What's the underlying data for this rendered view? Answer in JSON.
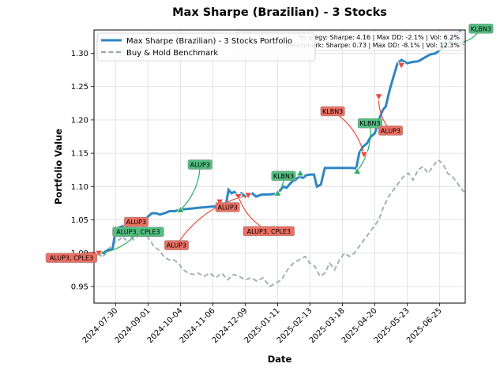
{
  "chart_data": {
    "type": "line",
    "title": "Max Sharpe (Brazilian) - 3 Stocks",
    "xlabel": "Date",
    "ylabel": "Portfolio Value",
    "x_ticks": [
      "2024-07-30",
      "2024-09-01",
      "2024-10-04",
      "2024-11-06",
      "2024-12-09",
      "2025-01-11",
      "2025-02-13",
      "2025-03-18",
      "2025-04-20",
      "2025-05-23",
      "2025-06-25"
    ],
    "y_ticks": [
      "0.95",
      "1.00",
      "1.05",
      "1.10",
      "1.15",
      "1.20",
      "1.25",
      "1.30"
    ],
    "xlim": [
      "2024-07-08",
      "2025-07-21"
    ],
    "ylim": [
      0.925,
      1.335
    ],
    "grid": true,
    "legend_position": "top-left",
    "stats_box": {
      "line1": "Strategy: Sharpe: 4.16 | Max DD: -2.1% | Vol: 6.2%",
      "line2": "Benchmark: Sharpe: 0.73 | Max DD: -8.1% | Vol: 12.3%"
    },
    "colors": {
      "strategy": "#2e86c1",
      "benchmark": "#95a5a6",
      "buy": "#27ae60",
      "sell": "#e74c3c",
      "buy_box": "#52be80",
      "sell_box": "#ec7063"
    },
    "series": [
      {
        "name": "Max Sharpe (Brazilian) - 3 Stocks Portfolio",
        "style": "solid",
        "points": [
          [
            "2024-07-13",
            1.0
          ],
          [
            "2024-07-16",
            1.001
          ],
          [
            "2024-07-18",
            1.0
          ],
          [
            "2024-07-20",
            1.003
          ],
          [
            "2024-07-23",
            1.005
          ],
          [
            "2024-07-25",
            1.005
          ],
          [
            "2024-07-27",
            1.007
          ],
          [
            "2024-07-30",
            1.035
          ],
          [
            "2024-08-02",
            1.038
          ],
          [
            "2024-08-05",
            1.04
          ],
          [
            "2024-08-08",
            1.041
          ],
          [
            "2024-08-11",
            1.043
          ],
          [
            "2024-08-14",
            1.043
          ],
          [
            "2024-08-17",
            1.045
          ],
          [
            "2024-08-20",
            1.045
          ],
          [
            "2024-08-24",
            1.046
          ],
          [
            "2024-08-28",
            1.047
          ],
          [
            "2024-09-01",
            1.055
          ],
          [
            "2024-09-05",
            1.06
          ],
          [
            "2024-09-09",
            1.06
          ],
          [
            "2024-09-13",
            1.058
          ],
          [
            "2024-09-18",
            1.06
          ],
          [
            "2024-09-23",
            1.063
          ],
          [
            "2024-09-28",
            1.063
          ],
          [
            "2024-10-04",
            1.065
          ],
          [
            "2024-10-08",
            1.066
          ],
          [
            "2024-10-15",
            1.067
          ],
          [
            "2024-10-22",
            1.068
          ],
          [
            "2024-10-29",
            1.069
          ],
          [
            "2024-11-06",
            1.07
          ],
          [
            "2024-11-13",
            1.07
          ],
          [
            "2024-11-19",
            1.07
          ],
          [
            "2024-11-22",
            1.095
          ],
          [
            "2024-11-25",
            1.09
          ],
          [
            "2024-11-28",
            1.092
          ],
          [
            "2024-12-02",
            1.085
          ],
          [
            "2024-12-05",
            1.09
          ],
          [
            "2024-12-09",
            1.085
          ],
          [
            "2024-12-12",
            1.087
          ],
          [
            "2024-12-16",
            1.09
          ],
          [
            "2024-12-20",
            1.085
          ],
          [
            "2024-12-26",
            1.088
          ],
          [
            "2025-01-02",
            1.088
          ],
          [
            "2025-01-08",
            1.089
          ],
          [
            "2025-01-11",
            1.09
          ],
          [
            "2025-01-14",
            1.095
          ],
          [
            "2025-01-17",
            1.1
          ],
          [
            "2025-01-20",
            1.098
          ],
          [
            "2025-01-23",
            1.103
          ],
          [
            "2025-01-26",
            1.108
          ],
          [
            "2025-01-29",
            1.11
          ],
          [
            "2025-02-02",
            1.115
          ],
          [
            "2025-02-06",
            1.113
          ],
          [
            "2025-02-09",
            1.117
          ],
          [
            "2025-02-13",
            1.118
          ],
          [
            "2025-02-17",
            1.118
          ],
          [
            "2025-02-20",
            1.1
          ],
          [
            "2025-02-24",
            1.103
          ],
          [
            "2025-02-28",
            1.128
          ],
          [
            "2025-03-06",
            1.128
          ],
          [
            "2025-03-12",
            1.128
          ],
          [
            "2025-03-18",
            1.128
          ],
          [
            "2025-03-24",
            1.128
          ],
          [
            "2025-03-28",
            1.128
          ],
          [
            "2025-04-01",
            1.127
          ],
          [
            "2025-04-04",
            1.15
          ],
          [
            "2025-04-08",
            1.16
          ],
          [
            "2025-04-12",
            1.165
          ],
          [
            "2025-04-16",
            1.175
          ],
          [
            "2025-04-20",
            1.18
          ],
          [
            "2025-04-24",
            1.2
          ],
          [
            "2025-04-28",
            1.215
          ],
          [
            "2025-05-01",
            1.22
          ],
          [
            "2025-05-05",
            1.245
          ],
          [
            "2025-05-09",
            1.265
          ],
          [
            "2025-05-13",
            1.285
          ],
          [
            "2025-05-17",
            1.29
          ],
          [
            "2025-05-23",
            1.285
          ],
          [
            "2025-05-28",
            1.287
          ],
          [
            "2025-06-03",
            1.288
          ],
          [
            "2025-06-09",
            1.293
          ],
          [
            "2025-06-15",
            1.298
          ],
          [
            "2025-06-21",
            1.3
          ],
          [
            "2025-06-25",
            1.305
          ],
          [
            "2025-07-01",
            1.31
          ],
          [
            "2025-07-07",
            1.32
          ],
          [
            "2025-07-12",
            1.33
          ],
          [
            "2025-07-17",
            1.333
          ]
        ]
      },
      {
        "name": "Buy & Hold Benchmark",
        "style": "dashed",
        "points": [
          [
            "2024-07-13",
            1.0
          ],
          [
            "2024-07-16",
            0.993
          ],
          [
            "2024-07-19",
            0.998
          ],
          [
            "2024-07-22",
            1.005
          ],
          [
            "2024-07-25",
            1.01
          ],
          [
            "2024-07-28",
            1.015
          ],
          [
            "2024-07-31",
            1.02
          ],
          [
            "2024-08-03",
            1.02
          ],
          [
            "2024-08-06",
            1.025
          ],
          [
            "2024-08-09",
            1.02
          ],
          [
            "2024-08-13",
            1.03
          ],
          [
            "2024-08-17",
            1.02
          ],
          [
            "2024-08-21",
            1.025
          ],
          [
            "2024-08-25",
            1.033
          ],
          [
            "2024-08-29",
            1.028
          ],
          [
            "2024-09-03",
            1.02
          ],
          [
            "2024-09-07",
            1.01
          ],
          [
            "2024-09-12",
            1.005
          ],
          [
            "2024-09-17",
            0.995
          ],
          [
            "2024-09-22",
            0.99
          ],
          [
            "2024-09-27",
            0.99
          ],
          [
            "2024-10-02",
            0.985
          ],
          [
            "2024-10-07",
            0.975
          ],
          [
            "2024-10-12",
            0.97
          ],
          [
            "2024-10-17",
            0.968
          ],
          [
            "2024-10-22",
            0.97
          ],
          [
            "2024-10-28",
            0.965
          ],
          [
            "2024-11-03",
            0.97
          ],
          [
            "2024-11-09",
            0.963
          ],
          [
            "2024-11-15",
            0.97
          ],
          [
            "2024-11-21",
            0.96
          ],
          [
            "2024-11-27",
            0.968
          ],
          [
            "2024-12-03",
            0.965
          ],
          [
            "2024-12-09",
            0.96
          ],
          [
            "2024-12-15",
            0.963
          ],
          [
            "2024-12-21",
            0.958
          ],
          [
            "2024-12-27",
            0.963
          ],
          [
            "2025-01-03",
            0.95
          ],
          [
            "2025-01-09",
            0.955
          ],
          [
            "2025-01-15",
            0.96
          ],
          [
            "2025-01-21",
            0.975
          ],
          [
            "2025-01-27",
            0.985
          ],
          [
            "2025-02-02",
            0.99
          ],
          [
            "2025-02-08",
            0.995
          ],
          [
            "2025-02-13",
            0.985
          ],
          [
            "2025-02-18",
            0.98
          ],
          [
            "2025-02-23",
            0.965
          ],
          [
            "2025-02-28",
            0.97
          ],
          [
            "2025-03-05",
            0.985
          ],
          [
            "2025-03-10",
            0.975
          ],
          [
            "2025-03-15",
            0.99
          ],
          [
            "2025-03-20",
            1.0
          ],
          [
            "2025-03-25",
            0.995
          ],
          [
            "2025-03-30",
            1.0
          ],
          [
            "2025-04-04",
            1.01
          ],
          [
            "2025-04-09",
            1.02
          ],
          [
            "2025-04-14",
            1.03
          ],
          [
            "2025-04-19",
            1.04
          ],
          [
            "2025-04-24",
            1.05
          ],
          [
            "2025-04-29",
            1.07
          ],
          [
            "2025-05-04",
            1.085
          ],
          [
            "2025-05-09",
            1.095
          ],
          [
            "2025-05-14",
            1.105
          ],
          [
            "2025-05-19",
            1.115
          ],
          [
            "2025-05-24",
            1.12
          ],
          [
            "2025-05-29",
            1.11
          ],
          [
            "2025-06-03",
            1.125
          ],
          [
            "2025-06-08",
            1.13
          ],
          [
            "2025-06-13",
            1.12
          ],
          [
            "2025-06-18",
            1.13
          ],
          [
            "2025-06-23",
            1.14
          ],
          [
            "2025-06-28",
            1.135
          ],
          [
            "2025-07-03",
            1.12
          ],
          [
            "2025-07-08",
            1.115
          ],
          [
            "2025-07-13",
            1.105
          ],
          [
            "2025-07-18",
            1.095
          ],
          [
            "2025-07-21",
            1.09
          ]
        ]
      }
    ],
    "trades": [
      {
        "type": "buy",
        "date": "2024-07-13",
        "value": 1.0,
        "label": "ALUP3, CPLE3",
        "lx": "2024-08-22",
        "ly": 1.032
      },
      {
        "type": "sell",
        "date": "2024-07-13",
        "value": 1.0,
        "label": "ALUP3, CPLE3",
        "lx": "2024-06-15",
        "ly": 0.993
      },
      {
        "type": "sell",
        "date": "2024-08-10",
        "value": 1.04,
        "label": "ALUP3",
        "lx": "2024-08-20",
        "ly": 1.047
      },
      {
        "type": "buy",
        "date": "2024-10-04",
        "value": 1.065,
        "label": "ALUP3",
        "lx": "2024-10-24",
        "ly": 1.133
      },
      {
        "type": "sell",
        "date": "2024-11-13",
        "value": 1.077,
        "label": "ALUP3",
        "lx": "2024-11-21",
        "ly": 1.069
      },
      {
        "type": "sell",
        "date": "2024-12-02",
        "value": 1.085,
        "label": "ALUP3, CPLE3",
        "lx": "2025-01-02",
        "ly": 1.033
      },
      {
        "type": "sell",
        "date": "2024-12-12",
        "value": 1.087,
        "label": "ALUP3",
        "lx": "2024-09-30",
        "ly": 1.012
      },
      {
        "type": "buy",
        "date": "2025-01-11",
        "value": 1.09,
        "label": "KLBN3",
        "lx": "2025-01-17",
        "ly": 1.116
      },
      {
        "type": "buy",
        "date": "2025-01-22",
        "value": 1.12,
        "label": "",
        "lx": null,
        "ly": null
      },
      {
        "type": "buy",
        "date": "2025-01-26",
        "value": 1.12,
        "label": "",
        "lx": null,
        "ly": null
      },
      {
        "type": "buy",
        "date": "2025-02-03",
        "value": 1.12,
        "label": "",
        "lx": null,
        "ly": null
      },
      {
        "type": "sell",
        "date": "2025-04-09",
        "value": 1.148,
        "label": "KLBN3",
        "lx": "2025-03-08",
        "ly": 1.213
      },
      {
        "type": "buy",
        "date": "2025-04-02",
        "value": 1.123,
        "label": "KLBN3",
        "lx": "2025-04-15",
        "ly": 1.195
      },
      {
        "type": "sell",
        "date": "2025-04-24",
        "value": 1.235,
        "label": "ALUP3",
        "lx": "2025-05-06",
        "ly": 1.184
      },
      {
        "type": "sell",
        "date": "2025-05-17",
        "value": 1.282,
        "label": "",
        "lx": null,
        "ly": null
      },
      {
        "type": "buy",
        "date": "2025-07-17",
        "value": 1.316,
        "label": "KLBN3",
        "lx": "2025-08-06",
        "ly": 1.337
      }
    ]
  }
}
